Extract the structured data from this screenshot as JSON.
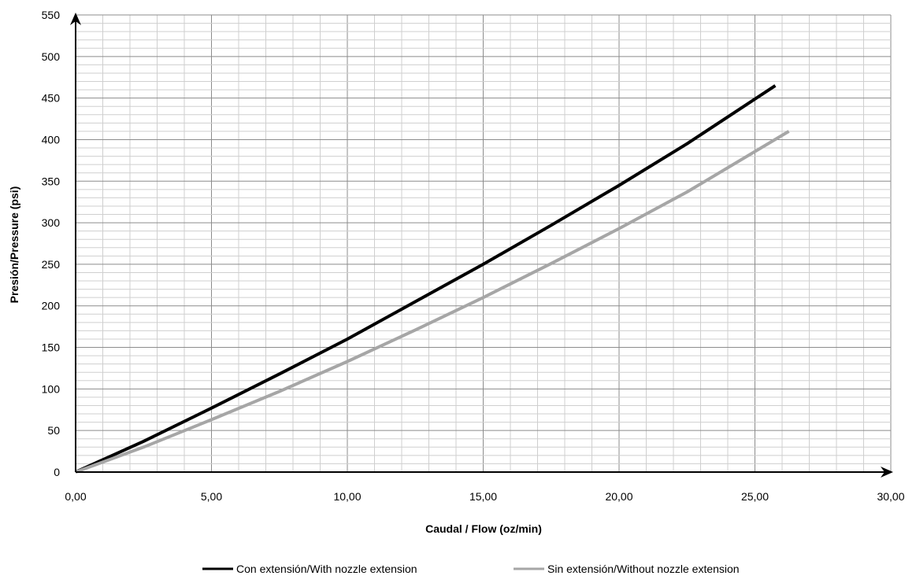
{
  "chart_data": {
    "type": "line",
    "title": "",
    "xlabel": "Caudal / Flow  (oz/min)",
    "ylabel": "Presión/Pressure (psi)",
    "xlim": [
      0,
      30
    ],
    "ylim": [
      0,
      550
    ],
    "x_ticks": [
      0,
      5,
      10,
      15,
      20,
      25,
      30
    ],
    "x_tick_labels": [
      "0,00",
      "5,00",
      "10,00",
      "15,00",
      "20,00",
      "25,00",
      "30,00"
    ],
    "y_ticks": [
      0,
      50,
      100,
      150,
      200,
      250,
      300,
      350,
      400,
      450,
      500,
      550
    ],
    "y_tick_labels": [
      "0",
      "50",
      "100",
      "150",
      "200",
      "250",
      "300",
      "350",
      "400",
      "450",
      "500",
      "550"
    ],
    "grid": true,
    "legend_position": "bottom",
    "series": [
      {
        "name": "Con extensión/With nozzle extension",
        "color": "#000000",
        "x": [
          0,
          2.5,
          5,
          7.5,
          10,
          12.5,
          15,
          17.5,
          20,
          22.5,
          25.75
        ],
        "y": [
          0,
          37,
          77,
          118,
          160,
          205,
          250,
          297,
          345,
          395,
          465
        ]
      },
      {
        "name": "Sin extensión/Without nozzle extension",
        "color": "#a6a6a6",
        "x": [
          0,
          2.5,
          5,
          7.5,
          10,
          12.5,
          15,
          17.5,
          20,
          22.5,
          26.25
        ],
        "y": [
          0,
          30,
          63,
          97,
          133,
          171,
          210,
          251,
          293,
          337,
          410
        ]
      }
    ]
  }
}
